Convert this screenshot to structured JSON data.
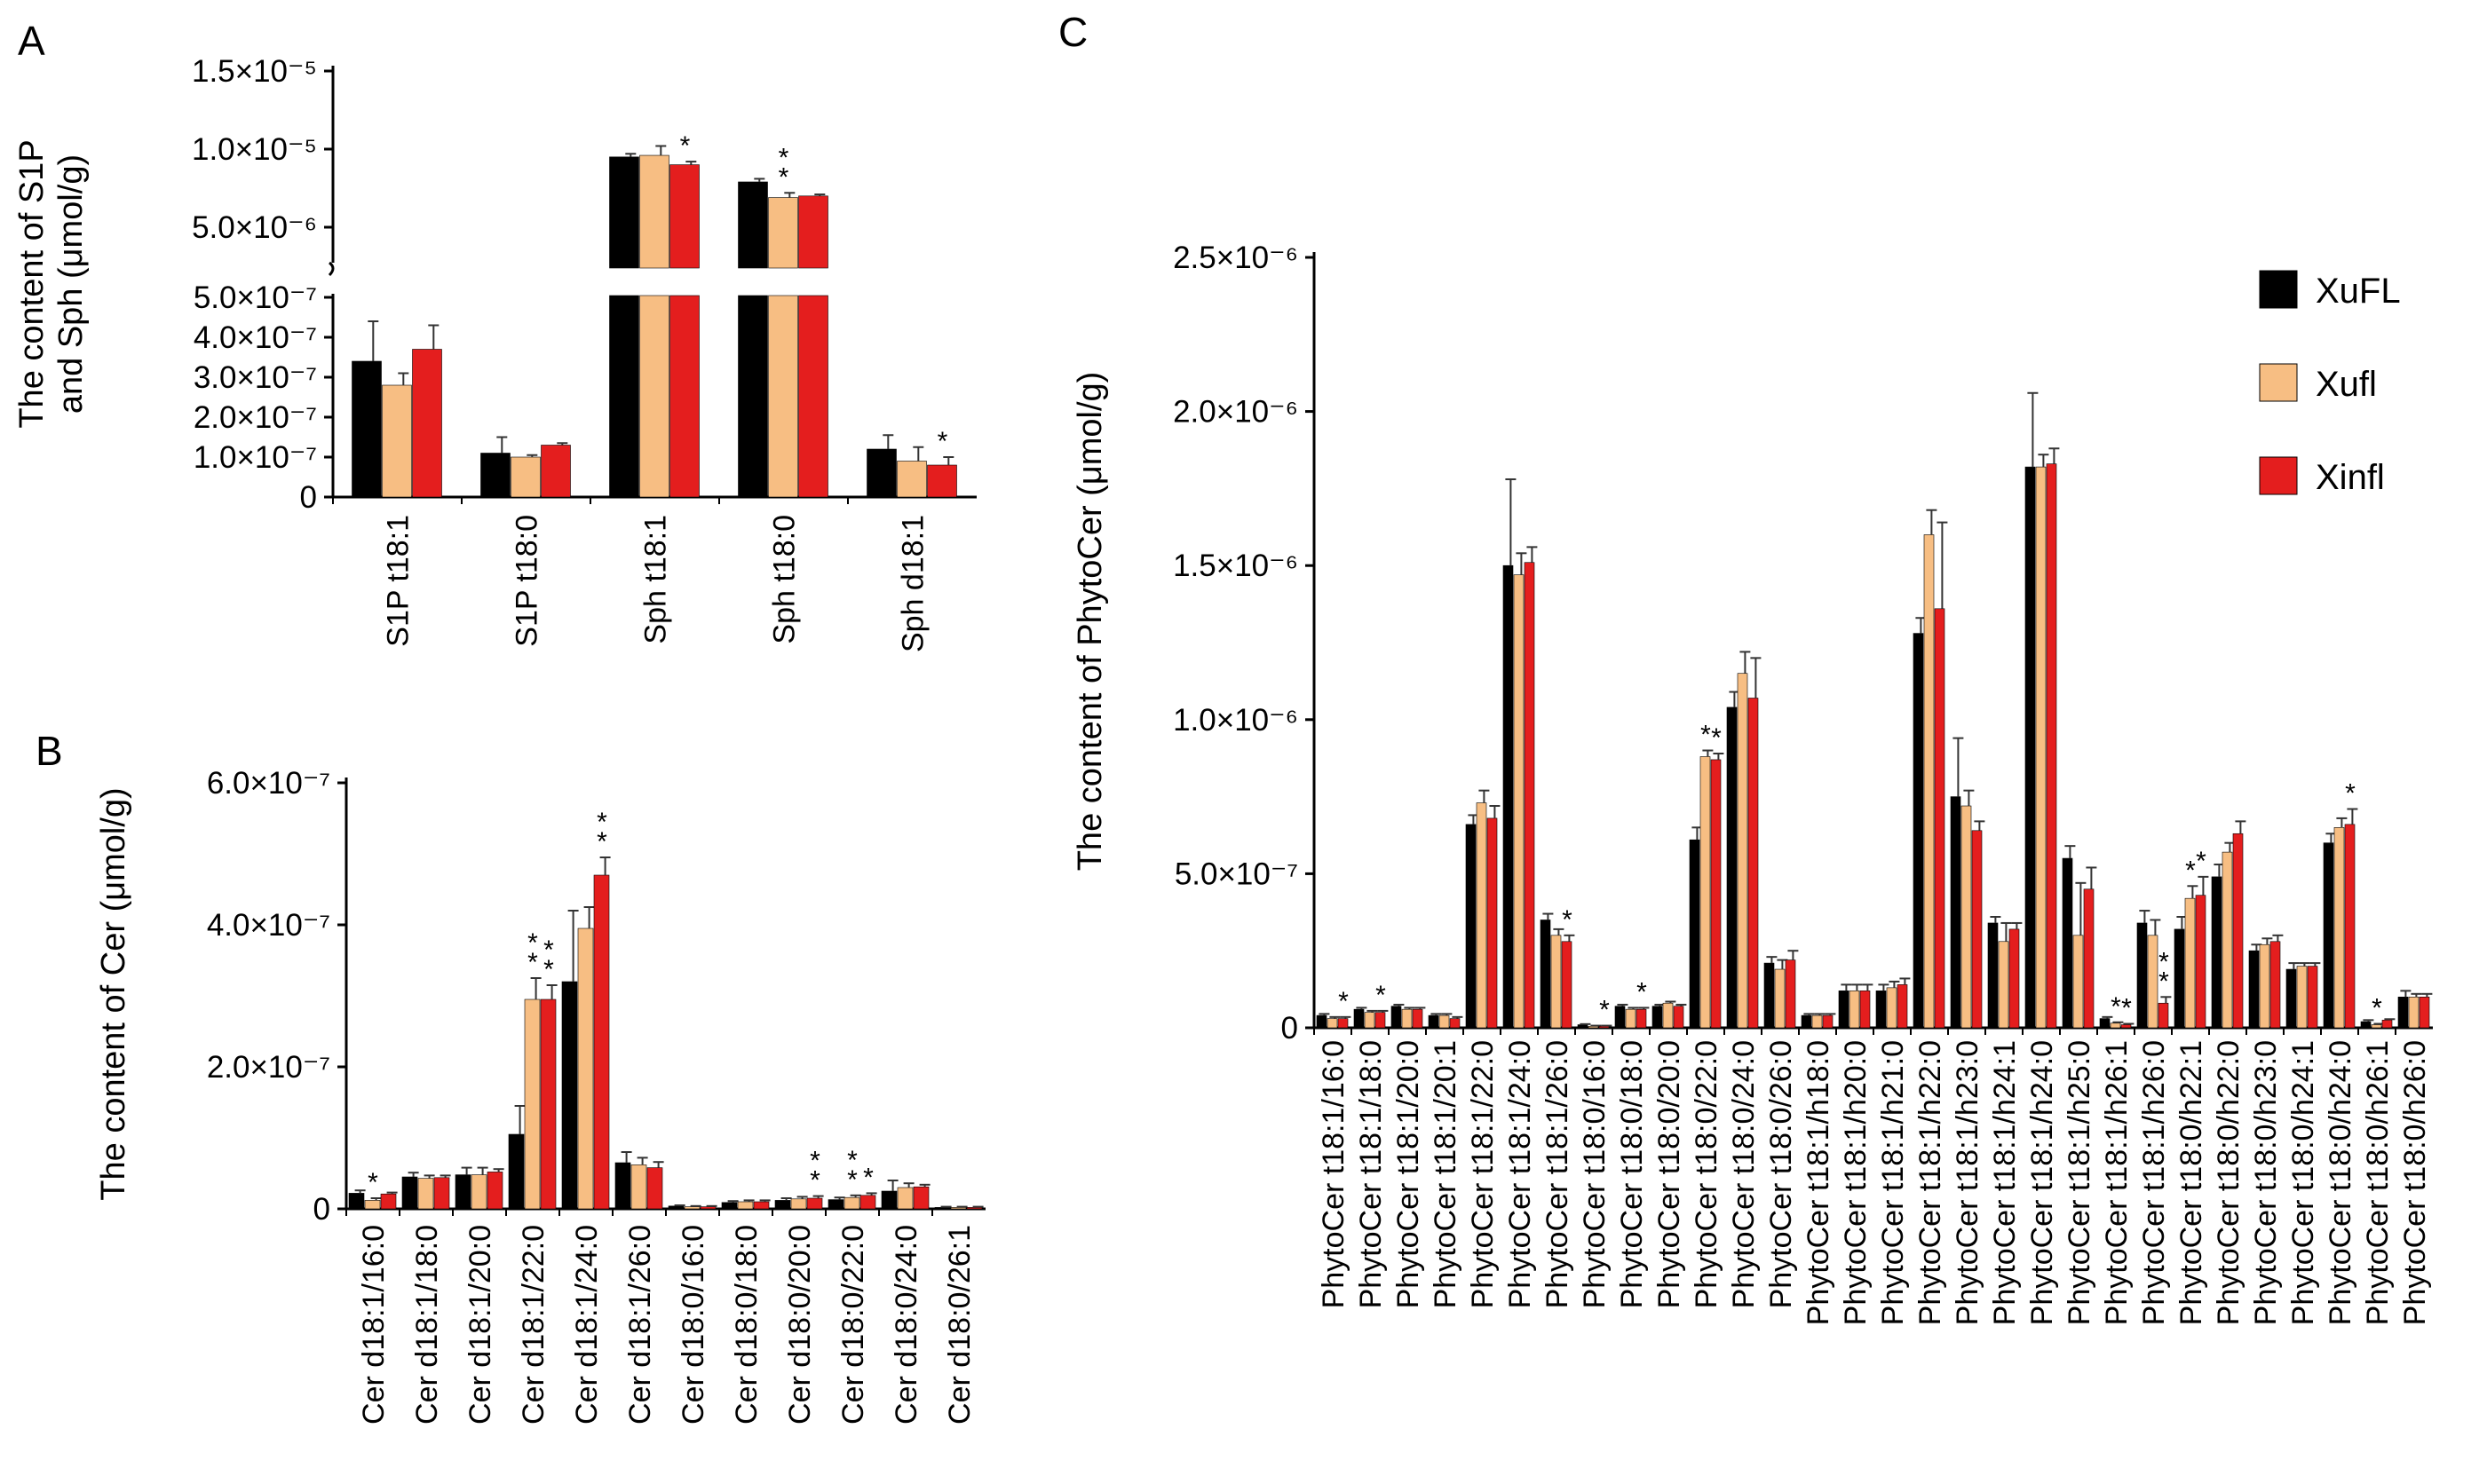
{
  "legend": {
    "entries": [
      {
        "name": "XuFL",
        "color": "#000000"
      },
      {
        "name": "Xufl",
        "color": "#F7BE83"
      },
      {
        "name": "Xinfl",
        "color": "#E41E1E"
      }
    ],
    "placement": "top-right"
  },
  "chart_data": [
    {
      "panel": "A",
      "type": "bar",
      "ylabel": "The content of S1P and Sph (μmol/g)",
      "broken_axis": true,
      "ylim_lower": [
        0,
        5e-07
      ],
      "ylim_upper": [
        0,
        1.5e-05
      ],
      "ytick_labels_lower": [
        "0",
        "1.0×10⁻⁷",
        "2.0×10⁻⁷",
        "3.0×10⁻⁷",
        "4.0×10⁻⁷",
        "5.0×10⁻⁷"
      ],
      "ytick_labels_upper": [
        "5.0×10⁻⁶",
        "1.0×10⁻⁵",
        "1.5×10⁻⁵"
      ],
      "categories": [
        "S1P t18:1",
        "S1P t18:0",
        "Sph t18:1",
        "Sph t18:0",
        "Sph d18:1"
      ],
      "series": [
        {
          "name": "XuFL",
          "values": [
            3.4e-07,
            1.1e-07,
            9.5e-06,
            7.9e-06,
            1.2e-07
          ],
          "errors": [
            1e-07,
            4e-08,
            2e-07,
            2e-07,
            3.5e-08
          ]
        },
        {
          "name": "Xufl",
          "values": [
            2.8e-07,
            1e-07,
            9.6e-06,
            6.9e-06,
            9e-08
          ],
          "errors": [
            3e-08,
            5e-09,
            6e-07,
            3e-07,
            3.5e-08
          ]
        },
        {
          "name": "Xinfl",
          "values": [
            3.7e-07,
            1.3e-07,
            9e-06,
            7e-06,
            8e-08
          ],
          "errors": [
            6e-08,
            5e-09,
            2e-07,
            1e-07,
            2e-08
          ]
        }
      ],
      "annotations": [
        {
          "category": "Sph t18:1",
          "series": "Xinfl",
          "text": "*"
        },
        {
          "category": "Sph t18:0",
          "series": "Xufl",
          "text": "*\n*"
        },
        {
          "category": "Sph d18:1",
          "series": "Xinfl",
          "text": "*"
        }
      ]
    },
    {
      "panel": "B",
      "type": "bar",
      "ylabel": "The content of Cer (μmol/g)",
      "ylim": [
        0,
        6e-07
      ],
      "ytick_labels": [
        "0",
        "2.0×10⁻⁷",
        "4.0×10⁻⁷",
        "6.0×10⁻⁷"
      ],
      "categories": [
        "Cer d18:1/16:0",
        "Cer d18:1/18:0",
        "Cer d18:1/20:0",
        "Cer d18:1/22:0",
        "Cer d18:1/24:0",
        "Cer d18:1/26:0",
        "Cer d18:0/16:0",
        "Cer d18:0/18:0",
        "Cer d18:0/20:0",
        "Cer d18:0/22:0",
        "Cer d18:0/24:0",
        "Cer d18:0/26:1"
      ],
      "series": [
        {
          "name": "XuFL",
          "values": [
            2.2e-08,
            4.5e-08,
            4.8e-08,
            1.05e-07,
            3.2e-07,
            6.5e-08,
            4e-09,
            9e-09,
            1.2e-08,
            1.3e-08,
            2.5e-08,
            2e-09
          ],
          "errors": [
            4e-09,
            6e-09,
            1e-08,
            4e-08,
            1e-07,
            1.5e-08,
            1e-09,
            2e-09,
            3e-09,
            3e-09,
            1.5e-08,
            1e-09
          ]
        },
        {
          "name": "Xufl",
          "values": [
            1.2e-08,
            4.3e-08,
            4.8e-08,
            2.95e-07,
            3.95e-07,
            6.2e-08,
            3e-09,
            1e-08,
            1.4e-08,
            1.6e-08,
            3e-08,
            2e-09
          ],
          "errors": [
            3e-09,
            4e-09,
            1e-08,
            3e-08,
            3e-08,
            1e-08,
            1e-09,
            2e-09,
            3e-09,
            3e-09,
            6e-09,
            1e-09
          ]
        },
        {
          "name": "Xinfl",
          "values": [
            2.1e-08,
            4.4e-08,
            5.2e-08,
            2.95e-07,
            4.7e-07,
            5.8e-08,
            3e-09,
            1e-08,
            1.5e-08,
            1.9e-08,
            3.1e-08,
            2e-09
          ],
          "errors": [
            2e-09,
            3e-09,
            4e-09,
            2e-08,
            2.5e-08,
            8e-09,
            1e-09,
            2e-09,
            3e-09,
            3e-09,
            3e-09,
            1e-09
          ]
        }
      ],
      "annotations": [
        {
          "category": "Cer d18:1/16:0",
          "series": "Xufl",
          "text": "*"
        },
        {
          "category": "Cer d18:1/22:0",
          "series": "Xufl",
          "text": "*\n*"
        },
        {
          "category": "Cer d18:1/22:0",
          "series": "Xinfl",
          "text": "*\n*"
        },
        {
          "category": "Cer d18:1/24:0",
          "series": "Xinfl",
          "text": "*\n*"
        },
        {
          "category": "Cer d18:0/20:0",
          "series": "Xinfl",
          "text": "*\n*"
        },
        {
          "category": "Cer d18:0/22:0",
          "series": "Xufl",
          "text": "*\n*"
        },
        {
          "category": "Cer d18:0/22:0",
          "series": "Xinfl",
          "text": "*"
        }
      ]
    },
    {
      "panel": "C",
      "type": "bar",
      "ylabel": "The content of PhytoCer (μmol/g)",
      "ylim": [
        0,
        2.5e-06
      ],
      "ytick_labels": [
        "0",
        "5.0×10⁻⁷",
        "1.0×10⁻⁶",
        "1.5×10⁻⁶",
        "2.0×10⁻⁶",
        "2.5×10⁻⁶"
      ],
      "categories": [
        "PhytoCer t18:1/16:0",
        "PhytoCer t18:1/18:0",
        "PhytoCer t18:1/20:0",
        "PhytoCer t18:1/20:1",
        "PhytoCer t18:1/22:0",
        "PhytoCer t18:1/24:0",
        "PhytoCer t18:1/26:0",
        "PhytoCer t18:0/16:0",
        "PhytoCer t18:0/18:0",
        "PhytoCer t18:0/20:0",
        "PhytoCer t18:0/22:0",
        "PhytoCer t18:0/24:0",
        "PhytoCer t18:0/26:0",
        "PhytoCer t18:1/h18:0",
        "PhytoCer t18:1/h20:0",
        "PhytoCer t18:1/h21:0",
        "PhytoCer t18:1/h22:0",
        "PhytoCer t18:1/h23:0",
        "PhytoCer t18:1/h24:1",
        "PhytoCer t18:1/h24:0",
        "PhytoCer t18:1/h25:0",
        "PhytoCer t18:1/h26:1",
        "PhytoCer t18:1/h26:0",
        "PhytoCer t18:0/h22:1",
        "PhytoCer t18:0/h22:0",
        "PhytoCer t18:0/h23:0",
        "PhytoCer t18:0/h24:1",
        "PhytoCer t18:0/h24:0",
        "PhytoCer t18:0/h26:1",
        "PhytoCer t18:0/h26:0"
      ],
      "series": [
        {
          "name": "XuFL",
          "values": [
            4e-08,
            6e-08,
            7e-08,
            4e-08,
            6.6e-07,
            1.5e-06,
            3.5e-07,
            1e-08,
            7e-08,
            7e-08,
            6.1e-07,
            1.04e-06,
            2.1e-07,
            4e-08,
            1.2e-07,
            1.2e-07,
            1.28e-06,
            7.5e-07,
            3.4e-07,
            1.82e-06,
            5.5e-07,
            3e-08,
            3.4e-07,
            3.2e-07,
            4.9e-07,
            2.5e-07,
            1.9e-07,
            6e-07,
            2e-08,
            1e-07
          ],
          "errors": [
            5e-09,
            5e-09,
            5e-09,
            5e-09,
            3e-08,
            2.8e-07,
            2e-08,
            2e-09,
            5e-09,
            5e-09,
            4e-08,
            5e-08,
            2e-08,
            5e-09,
            2e-08,
            2e-08,
            5e-08,
            1.9e-07,
            2e-08,
            2.4e-07,
            4e-08,
            5e-09,
            4e-08,
            4e-08,
            4e-08,
            2e-08,
            2e-08,
            3e-08,
            5e-09,
            2e-08
          ]
        },
        {
          "name": "Xufl",
          "values": [
            3e-08,
            5e-08,
            6e-08,
            4e-08,
            7.3e-07,
            1.47e-06,
            3e-07,
            5e-09,
            6e-08,
            8e-08,
            8.8e-07,
            1.15e-06,
            1.9e-07,
            4e-08,
            1.2e-07,
            1.3e-07,
            1.6e-06,
            7.2e-07,
            2.8e-07,
            1.82e-06,
            3e-07,
            1.5e-08,
            3e-07,
            4.2e-07,
            5.7e-07,
            2.7e-07,
            2e-07,
            6.5e-07,
            1e-08,
            1e-07
          ],
          "errors": [
            5e-09,
            5e-09,
            5e-09,
            5e-09,
            4e-08,
            7e-08,
            2e-08,
            2e-09,
            5e-09,
            5e-09,
            2e-08,
            7e-08,
            3e-08,
            5e-09,
            2e-08,
            2e-08,
            8e-08,
            5e-08,
            6e-08,
            4e-08,
            1.7e-07,
            3e-09,
            5e-08,
            4e-08,
            3e-08,
            2e-08,
            1e-08,
            3e-08,
            3e-09,
            1e-08
          ]
        },
        {
          "name": "Xinfl",
          "values": [
            3e-08,
            5e-08,
            6e-08,
            3e-08,
            6.8e-07,
            1.51e-06,
            2.8e-07,
            5e-09,
            6e-08,
            7e-08,
            8.7e-07,
            1.07e-06,
            2.2e-07,
            4e-08,
            1.2e-07,
            1.4e-07,
            1.36e-06,
            6.4e-07,
            3.2e-07,
            1.83e-06,
            4.5e-07,
            1e-08,
            8e-08,
            4.3e-07,
            6.3e-07,
            2.8e-07,
            2e-07,
            6.6e-07,
            2.5e-08,
            1e-07
          ],
          "errors": [
            5e-09,
            5e-09,
            5e-09,
            5e-09,
            4e-08,
            5e-08,
            2e-08,
            2e-09,
            5e-09,
            5e-09,
            2e-08,
            1.3e-07,
            3e-08,
            5e-09,
            2e-08,
            2e-08,
            2.8e-07,
            3e-08,
            2e-08,
            5e-08,
            7e-08,
            3e-09,
            2e-08,
            6e-08,
            4e-08,
            2e-08,
            1e-08,
            5e-08,
            3e-09,
            1e-08
          ]
        }
      ],
      "annotations": [
        {
          "category": "PhytoCer t18:1/16:0",
          "series": "Xinfl",
          "text": "*"
        },
        {
          "category": "PhytoCer t18:1/18:0",
          "series": "Xinfl",
          "text": "*"
        },
        {
          "category": "PhytoCer t18:1/26:0",
          "series": "Xinfl",
          "text": "*"
        },
        {
          "category": "PhytoCer t18:0/16:0",
          "series": "Xinfl",
          "text": "*"
        },
        {
          "category": "PhytoCer t18:0/18:0",
          "series": "Xinfl",
          "text": "*"
        },
        {
          "category": "PhytoCer t18:0/22:0",
          "series": "Xufl",
          "text": "*"
        },
        {
          "category": "PhytoCer t18:0/22:0",
          "series": "Xinfl",
          "text": "*"
        },
        {
          "category": "PhytoCer t18:1/h26:1",
          "series": "Xufl",
          "text": "*"
        },
        {
          "category": "PhytoCer t18:1/h26:1",
          "series": "Xinfl",
          "text": "*"
        },
        {
          "category": "PhytoCer t18:1/h26:0",
          "series": "Xinfl",
          "text": "*\n*"
        },
        {
          "category": "PhytoCer t18:0/h22:1",
          "series": "Xufl",
          "text": "*"
        },
        {
          "category": "PhytoCer t18:0/h22:1",
          "series": "Xinfl",
          "text": "*"
        },
        {
          "category": "PhytoCer t18:0/h24:0",
          "series": "Xinfl",
          "text": "*"
        },
        {
          "category": "PhytoCer t18:0/h26:1",
          "series": "Xufl",
          "text": "*"
        }
      ]
    }
  ]
}
